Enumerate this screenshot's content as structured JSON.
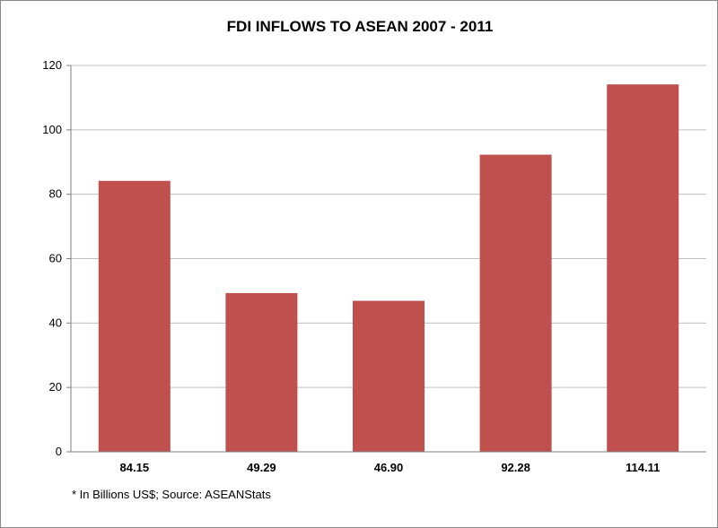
{
  "colors": {
    "bar": "#c0504d",
    "grid": "#bfbfbf",
    "axis": "#7f7f7f"
  },
  "note": "* In Billions US$; Source: ASEANStats",
  "chart_data": {
    "type": "bar",
    "title": "FDI INFLOWS TO ASEAN 2007 - 2011",
    "xlabel": "",
    "ylabel": "",
    "categories": [
      "84.15",
      "49.29",
      "46.90",
      "92.28",
      "114.11"
    ],
    "values": [
      84.15,
      49.29,
      46.9,
      92.28,
      114.11
    ],
    "ylim": [
      0,
      120
    ],
    "yticks": [
      "0",
      "20",
      "40",
      "60",
      "80",
      "100",
      "120"
    ],
    "grid": true,
    "legend": "none"
  }
}
